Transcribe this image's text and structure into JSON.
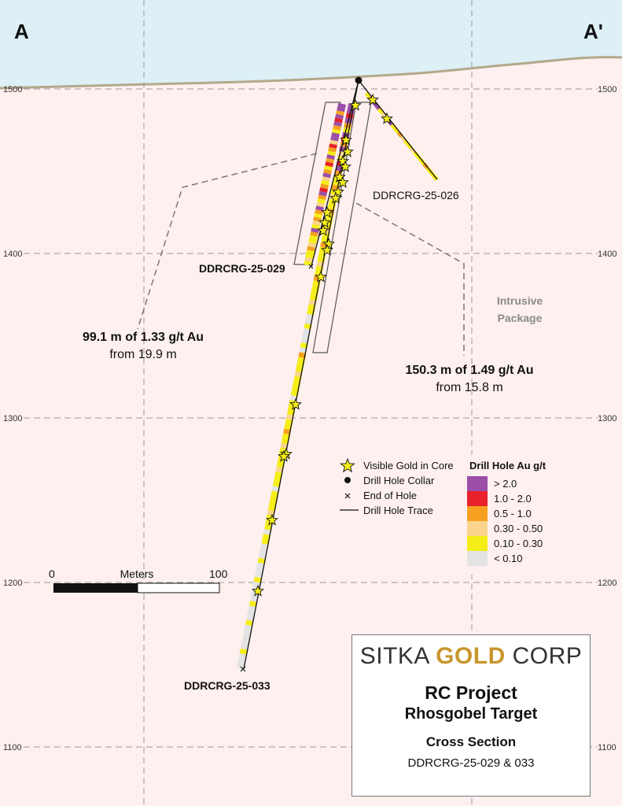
{
  "section": {
    "start_label": "A",
    "end_label": "A'"
  },
  "elevation_ticks": [
    "1500",
    "1400",
    "1300",
    "1200",
    "1100"
  ],
  "holes": [
    {
      "name": "DDRCRG-25-026"
    },
    {
      "name": "DDRCRG-25-029"
    },
    {
      "name": "DDRCRG-25-033"
    }
  ],
  "intercepts": [
    {
      "line1": "99.1 m of 1.33 g/t Au",
      "line2": "from 19.9 m"
    },
    {
      "line1": "150.3 m of 1.49 g/t Au",
      "line2": "from 15.8 m"
    }
  ],
  "zone_label": {
    "line1": "Intrusive",
    "line2": "Package"
  },
  "legend": {
    "symbols": [
      "Visible Gold in Core",
      "Drill Hole Collar",
      "End of Hole",
      "Drill Hole Trace"
    ],
    "grade_title": "Drill Hole Au g/t",
    "grades": [
      {
        "label": "> 2.0",
        "color": "#9b4fa8"
      },
      {
        "label": "1.0 - 2.0",
        "color": "#e8212b"
      },
      {
        "label": "0.5 - 1.0",
        "color": "#f5a021"
      },
      {
        "label": "0.30 - 0.50",
        "color": "#fbd58c"
      },
      {
        "label": "0.10 - 0.30",
        "color": "#f5ee16"
      },
      {
        "label": "< 0.10",
        "color": "#e3e3e3"
      }
    ]
  },
  "scale_bar": {
    "start": "0",
    "title": "Meters",
    "end": "100"
  },
  "title_block": {
    "logo_left": "SITKA ",
    "logo_gold": "GOLD",
    "logo_right": " CORP",
    "project": "RC Project",
    "target": "Rhosgobel Target",
    "section": "Cross Section",
    "holes": "DDRCRG-25-029 & 033"
  },
  "colors": {
    "sky": "#dcf0f6",
    "ground": "#fdf0ef",
    "topo": "#b4a88c"
  }
}
